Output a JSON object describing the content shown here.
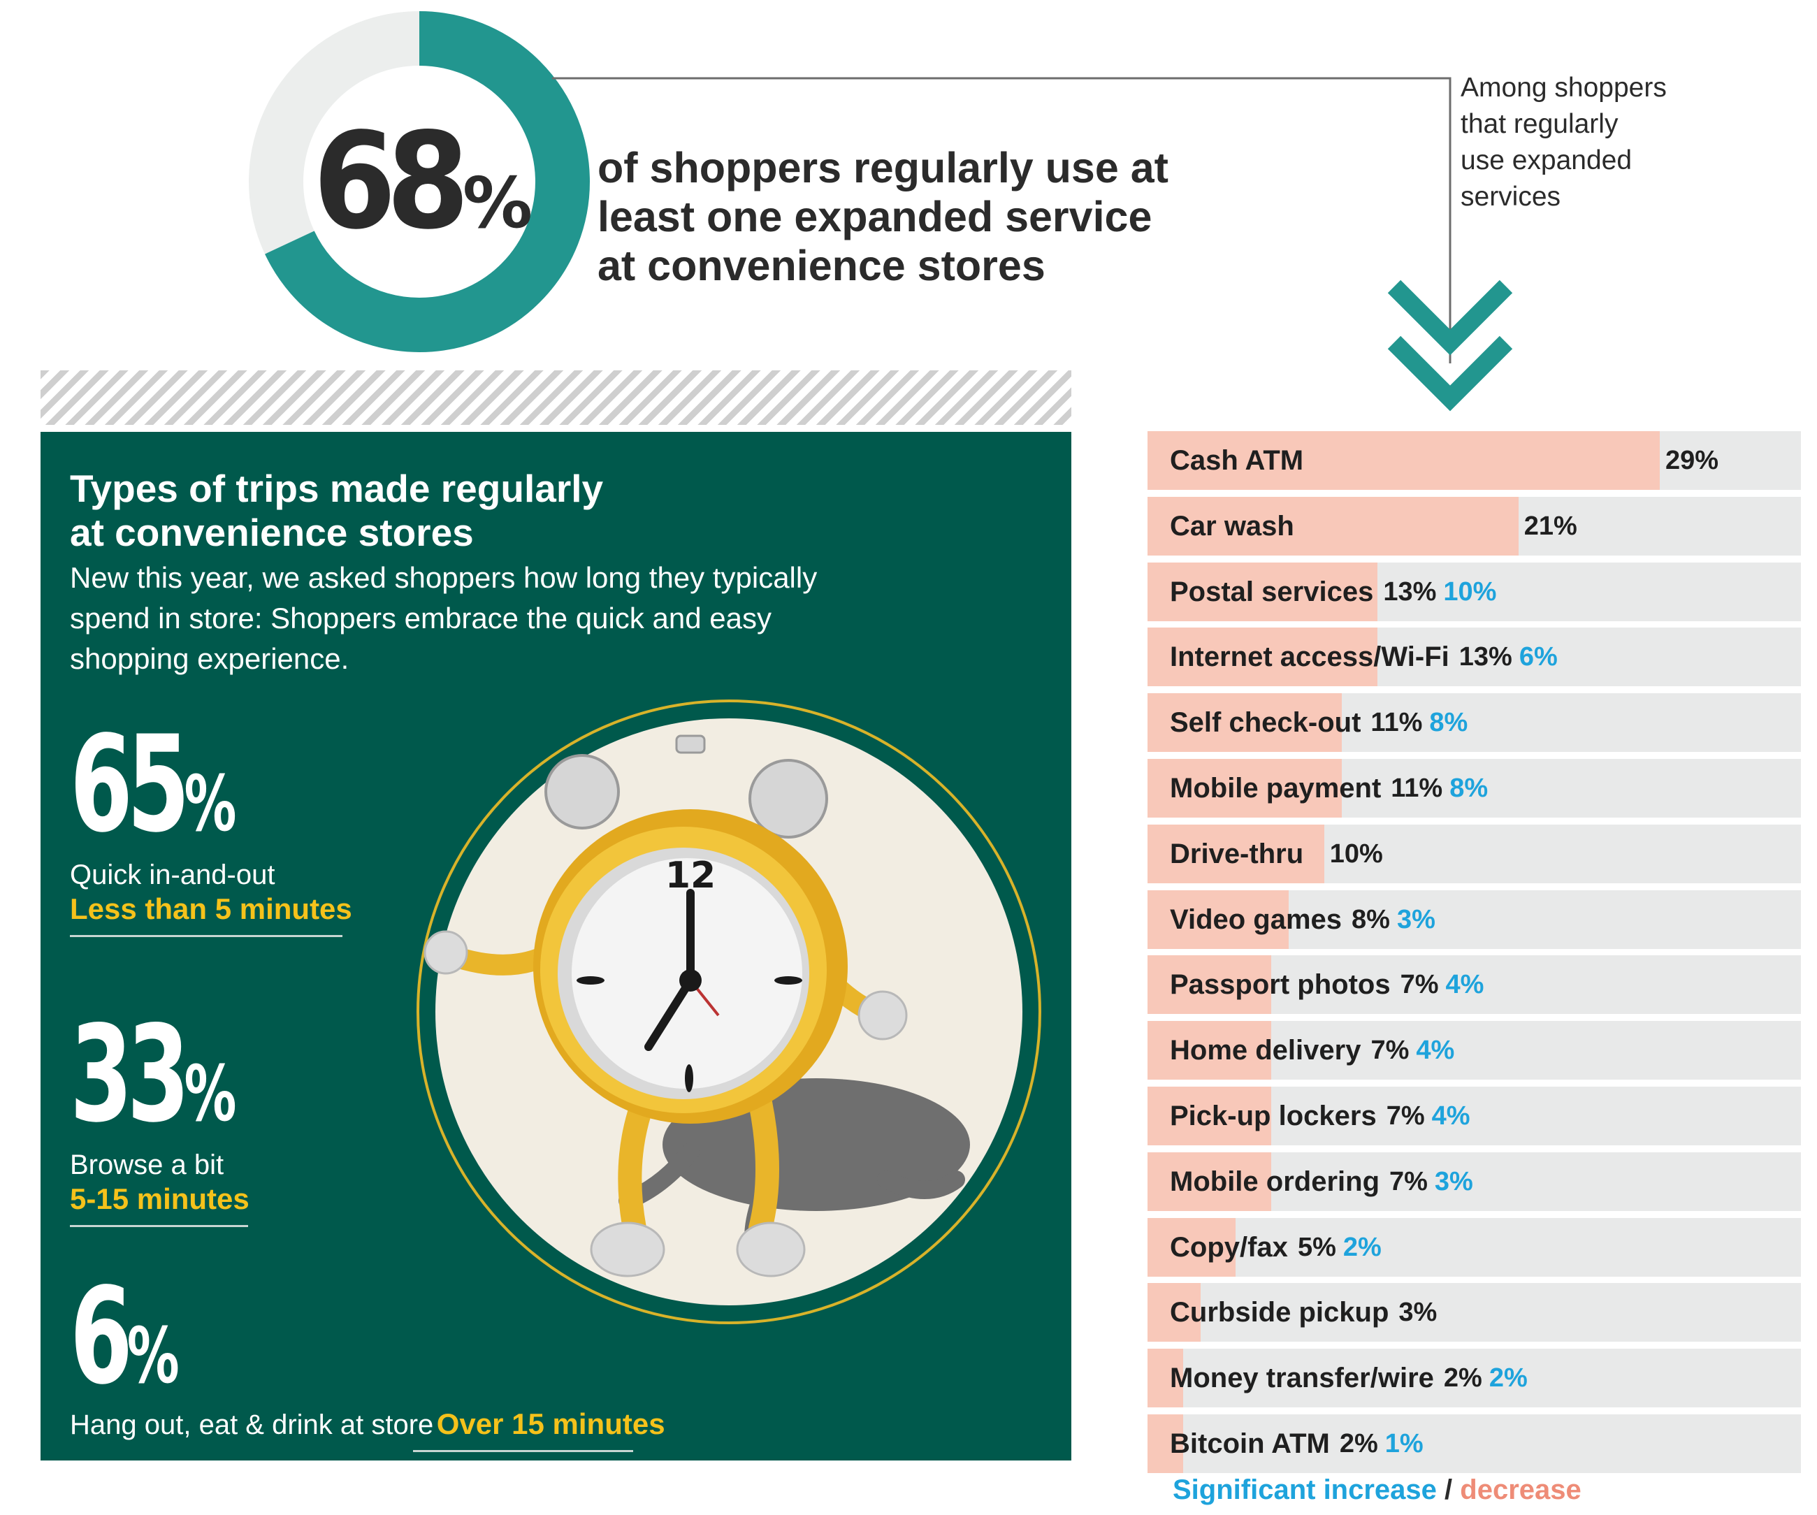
{
  "hero": {
    "value": 68,
    "number": "68",
    "percent": "%",
    "headline_lines": [
      "of shoppers regularly use at",
      "least one expanded service",
      "at convenience stores"
    ],
    "colors": {
      "fill": "#22968f",
      "rest": "#eceeed"
    }
  },
  "note": [
    "Among shoppers",
    "that regularly",
    "use expanded",
    "services"
  ],
  "panel": {
    "title_lines": [
      "Types of trips made regularly",
      "at convenience stores"
    ],
    "subtitle_lines": [
      "New this year, we asked shoppers how long they typically",
      "spend in store: Shoppers embrace the quick and easy",
      "shopping experience."
    ],
    "stats": [
      {
        "number": "65",
        "percent": "%",
        "label": "Quick in-and-out",
        "duration": "Less than 5 minutes"
      },
      {
        "number": "33",
        "percent": "%",
        "label": "Browse a bit",
        "duration": "5-15 minutes"
      },
      {
        "number": "6",
        "percent": "%",
        "label": "Hang out, eat & drink at store",
        "duration": "Over 15 minutes"
      }
    ],
    "clock_number": "12",
    "colors": {
      "background": "#00594c",
      "highlight": "#f5c21b"
    }
  },
  "legend": {
    "increase": "Significant increase",
    "separator": " / ",
    "decrease": "decrease"
  },
  "chart_data": {
    "type": "bar",
    "orientation": "horizontal",
    "categories": [
      "Cash ATM",
      "Car wash",
      "Postal services",
      "Internet access/Wi-Fi",
      "Self check-out",
      "Mobile payment",
      "Drive-thru",
      "Video games",
      "Passport photos",
      "Home delivery",
      "Pick-up lockers",
      "Mobile ordering",
      "Copy/fax",
      "Curbside pickup",
      "Money transfer/wire",
      "Bitcoin ATM"
    ],
    "values": [
      29,
      21,
      13,
      13,
      11,
      11,
      10,
      8,
      7,
      7,
      7,
      7,
      5,
      3,
      2,
      2
    ],
    "value_labels": [
      "29%",
      "21%",
      "13%",
      "13%",
      "11%",
      "11%",
      "10%",
      "8%",
      "7%",
      "7%",
      "7%",
      "7%",
      "5%",
      "3%",
      "2%",
      "2%"
    ],
    "change_labels": [
      "",
      "",
      "10%",
      "6%",
      "8%",
      "8%",
      "",
      "3%",
      "4%",
      "4%",
      "4%",
      "3%",
      "2%",
      "",
      "2%",
      "1%"
    ],
    "xlim": [
      0,
      35
    ],
    "colors": {
      "bar": "#f8c8b9",
      "track": "#e8e9e9",
      "increase": "#1ea3dc",
      "decrease": "#ee8c77"
    }
  }
}
